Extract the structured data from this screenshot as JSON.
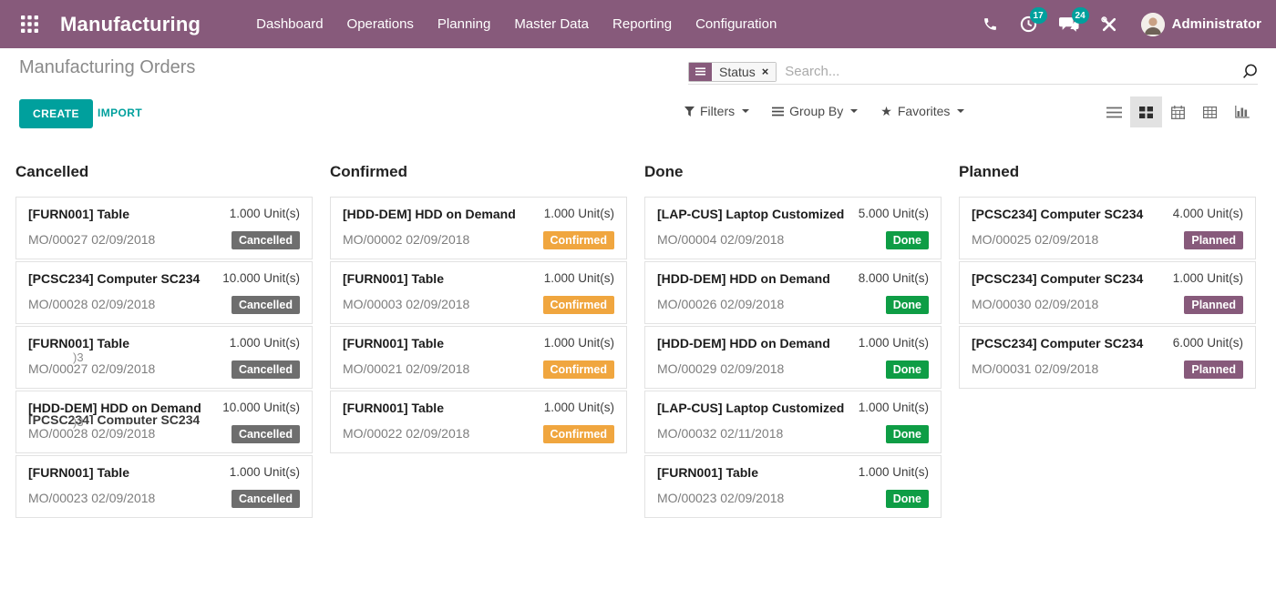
{
  "navbar": {
    "app_name": "Manufacturing",
    "menu": [
      "Dashboard",
      "Operations",
      "Planning",
      "Master Data",
      "Reporting",
      "Configuration"
    ],
    "activity_count": "17",
    "message_count": "24",
    "user_name": "Administrator"
  },
  "control_panel": {
    "title": "Manufacturing Orders",
    "create_label": "CREATE",
    "import_label": "IMPORT",
    "search": {
      "facet_label": "Status",
      "facet_remove": "×",
      "placeholder": "Search..."
    },
    "filters_label": "Filters",
    "group_by_label": "Group By",
    "favorites_label": "Favorites"
  },
  "colors": {
    "navbar_bg": "#875A7B",
    "primary": "#00A09D",
    "facet_bg": "#875A7B"
  },
  "kanban": {
    "status_colors": {
      "Cancelled": "#6e6e6e",
      "Confirmed": "#f0a63f",
      "Done": "#0e9d45",
      "Planned": "#875A7B"
    },
    "columns": [
      {
        "title": "Cancelled",
        "cards": [
          {
            "product": "[FURN001] Table",
            "qty": "1.000 Unit(s)",
            "ref": "MO/00027 02/09/2018",
            "status": "Cancelled"
          },
          {
            "product": "[PCSC234] Computer SC234",
            "qty": "10.000 Unit(s)",
            "ref": "MO/00028 02/09/2018",
            "status": "Cancelled"
          },
          {
            "product": "[FURN001] Table",
            "qty": "1.000 Unit(s)",
            "ref": "MO/00027 02/09/2018",
            "status": "Cancelled",
            "ref_ghost": ")3"
          },
          {
            "product": "[HDD-DEM] HDD on Demand",
            "title_ghost": "[PCSC234] Computer SC234",
            "qty": "10.000 Unit(s)",
            "ref": "MO/00028 02/09/2018",
            "status": "Cancelled",
            "ref_ghost": ")3"
          },
          {
            "product": "[FURN001] Table",
            "qty": "1.000 Unit(s)",
            "ref": "MO/00023 02/09/2018",
            "status": "Cancelled"
          }
        ]
      },
      {
        "title": "Confirmed",
        "cards": [
          {
            "product": "[HDD-DEM] HDD on Demand",
            "qty": "1.000 Unit(s)",
            "ref": "MO/00002 02/09/2018",
            "status": "Confirmed"
          },
          {
            "product": "[FURN001] Table",
            "qty": "1.000 Unit(s)",
            "ref": "MO/00003 02/09/2018",
            "status": "Confirmed"
          },
          {
            "product": "[FURN001] Table",
            "qty": "1.000 Unit(s)",
            "ref": "MO/00021 02/09/2018",
            "status": "Confirmed"
          },
          {
            "product": "[FURN001] Table",
            "qty": "1.000 Unit(s)",
            "ref": "MO/00022 02/09/2018",
            "status": "Confirmed"
          }
        ]
      },
      {
        "title": "Done",
        "cards": [
          {
            "product": "[LAP-CUS] Laptop Customized",
            "qty": "5.000 Unit(s)",
            "ref": "MO/00004 02/09/2018",
            "status": "Done"
          },
          {
            "product": "[HDD-DEM] HDD on Demand",
            "qty": "8.000 Unit(s)",
            "ref": "MO/00026 02/09/2018",
            "status": "Done"
          },
          {
            "product": "[HDD-DEM] HDD on Demand",
            "qty": "1.000 Unit(s)",
            "ref": "MO/00029 02/09/2018",
            "status": "Done"
          },
          {
            "product": "[LAP-CUS] Laptop Customized",
            "qty": "1.000 Unit(s)",
            "ref": "MO/00032 02/11/2018",
            "status": "Done"
          },
          {
            "product": "[FURN001] Table",
            "qty": "1.000 Unit(s)",
            "ref": "MO/00023 02/09/2018",
            "status": "Done"
          }
        ]
      },
      {
        "title": "Planned",
        "cards": [
          {
            "product": "[PCSC234] Computer SC234",
            "qty": "4.000 Unit(s)",
            "ref": "MO/00025 02/09/2018",
            "status": "Planned"
          },
          {
            "product": "[PCSC234] Computer SC234",
            "qty": "1.000 Unit(s)",
            "ref": "MO/00030 02/09/2018",
            "status": "Planned"
          },
          {
            "product": "[PCSC234] Computer SC234",
            "qty": "6.000 Unit(s)",
            "ref": "MO/00031 02/09/2018",
            "status": "Planned"
          }
        ]
      }
    ]
  }
}
